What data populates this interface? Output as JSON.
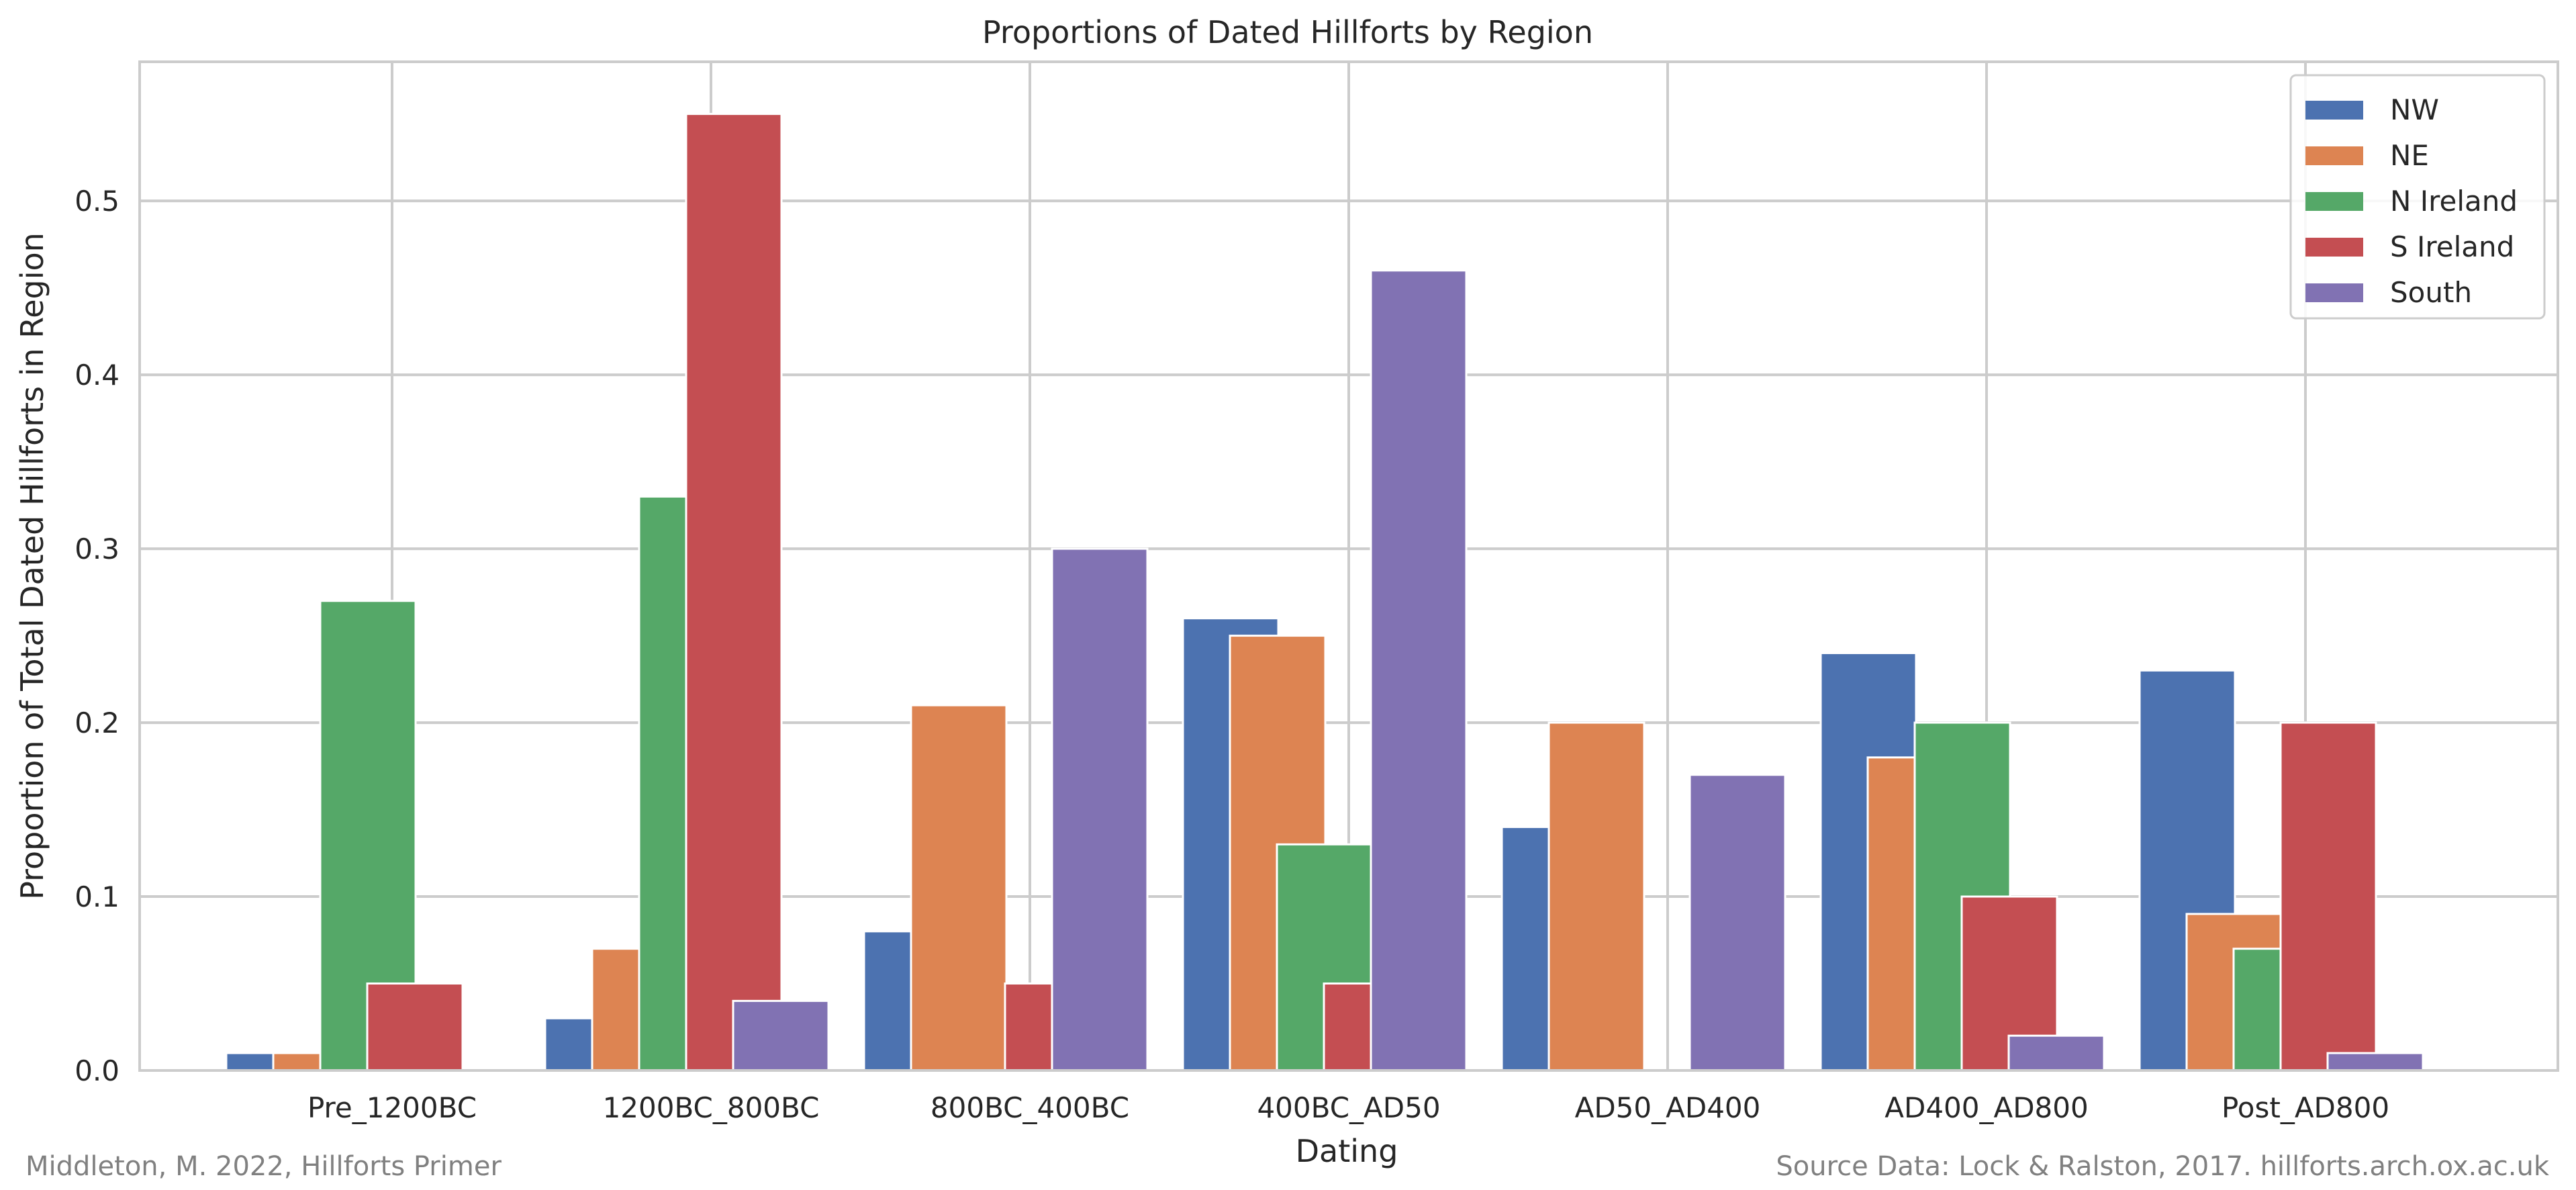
{
  "chart_data": {
    "type": "bar",
    "title": "Proportions of Dated Hillforts by Region",
    "xlabel": "Dating",
    "ylabel": "Proportion of Total Dated Hillforts in Region",
    "categories": [
      "Pre_1200BC",
      "1200BC_800BC",
      "800BC_400BC",
      "400BC_AD50",
      "AD50_AD400",
      "AD400_AD800",
      "Post_AD800"
    ],
    "yticks": [
      "0.0",
      "0.1",
      "0.2",
      "0.3",
      "0.4",
      "0.5"
    ],
    "ylim": [
      0,
      0.58
    ],
    "grid": true,
    "legend_position": "top-right",
    "series": [
      {
        "name": "NW",
        "color": "#4c72b0",
        "values": [
          0.01,
          0.03,
          0.08,
          0.26,
          0.14,
          0.24,
          0.23
        ]
      },
      {
        "name": "NE",
        "color": "#dd8452",
        "values": [
          0.01,
          0.07,
          0.21,
          0.25,
          0.2,
          0.18,
          0.09
        ]
      },
      {
        "name": "N Ireland",
        "color": "#55a868",
        "values": [
          0.27,
          0.33,
          0.0,
          0.13,
          0.0,
          0.2,
          0.07
        ]
      },
      {
        "name": "S Ireland",
        "color": "#c44e52",
        "values": [
          0.05,
          0.55,
          0.05,
          0.05,
          0.0,
          0.1,
          0.2
        ]
      },
      {
        "name": "South",
        "color": "#8172b3",
        "values": [
          0.0,
          0.04,
          0.3,
          0.46,
          0.17,
          0.02,
          0.01
        ]
      }
    ]
  },
  "footer": {
    "left": "Middleton, M. 2022, Hillforts Primer",
    "right": "Source Data: Lock & Ralston, 2017. hillforts.arch.ox.ac.uk"
  }
}
